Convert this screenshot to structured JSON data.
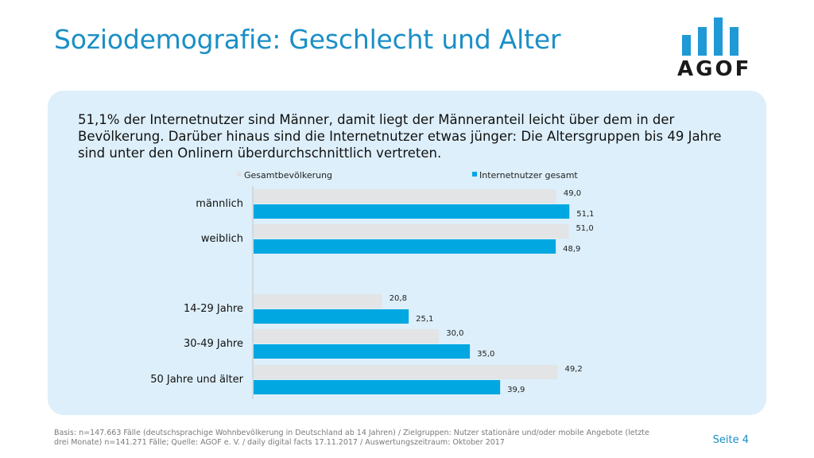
{
  "slide": {
    "title": "Soziodemografie: Geschlecht und Alter",
    "intro": "51,1% der Internetnutzer sind Männer, damit liegt der Männeranteil leicht über dem in der Bevölkerung. Darüber hinaus sind die Internetnutzer etwas jünger: Die Altersgruppen bis 49 Jahre sind unter den Onlinern überdurchschnittlich vertreten.",
    "footnote": "Basis: n=147.663 Fälle (deutschsprachige Wohnbevölkerung in Deutschland ab 14 Jahren) / Zielgruppen: Nutzer stationäre und/oder mobile Angebote (letzte drei Monate) n=141.271 Fälle; Quelle: AGOF e. V. / daily digital facts 17.11.2017 / Auswertungszeitraum: Oktober 2017",
    "page": "Seite 4"
  },
  "logo": {
    "text": "AGOF",
    "color": "#1f9ad6"
  },
  "colors": {
    "accent": "#1b8fc6",
    "panel": "#ddeffa",
    "series_gesamt": "#e2e4e6",
    "series_internet": "#00a7e1"
  },
  "chart_data": {
    "type": "bar",
    "orientation": "horizontal",
    "categories": [
      "männlich",
      "weiblich",
      "14-29 Jahre",
      "30-49 Jahre",
      "50 Jahre und älter"
    ],
    "series": [
      {
        "name": "Gesamtbevölkerung",
        "values": [
          49.0,
          51.0,
          20.8,
          30.0,
          49.2
        ],
        "labels": [
          "49,0",
          "51,0",
          "20,8",
          "30,0",
          "49,2"
        ],
        "color": "#e2e4e6"
      },
      {
        "name": "Internetnutzer gesamt",
        "values": [
          51.1,
          48.9,
          25.1,
          35.0,
          39.9
        ],
        "labels": [
          "51,1",
          "48,9",
          "25,1",
          "35,0",
          "39,9"
        ],
        "color": "#00a7e1"
      }
    ],
    "xlim": [
      0,
      53
    ],
    "legend_position": "top",
    "grid": false,
    "gap_after_category_index": 1
  }
}
